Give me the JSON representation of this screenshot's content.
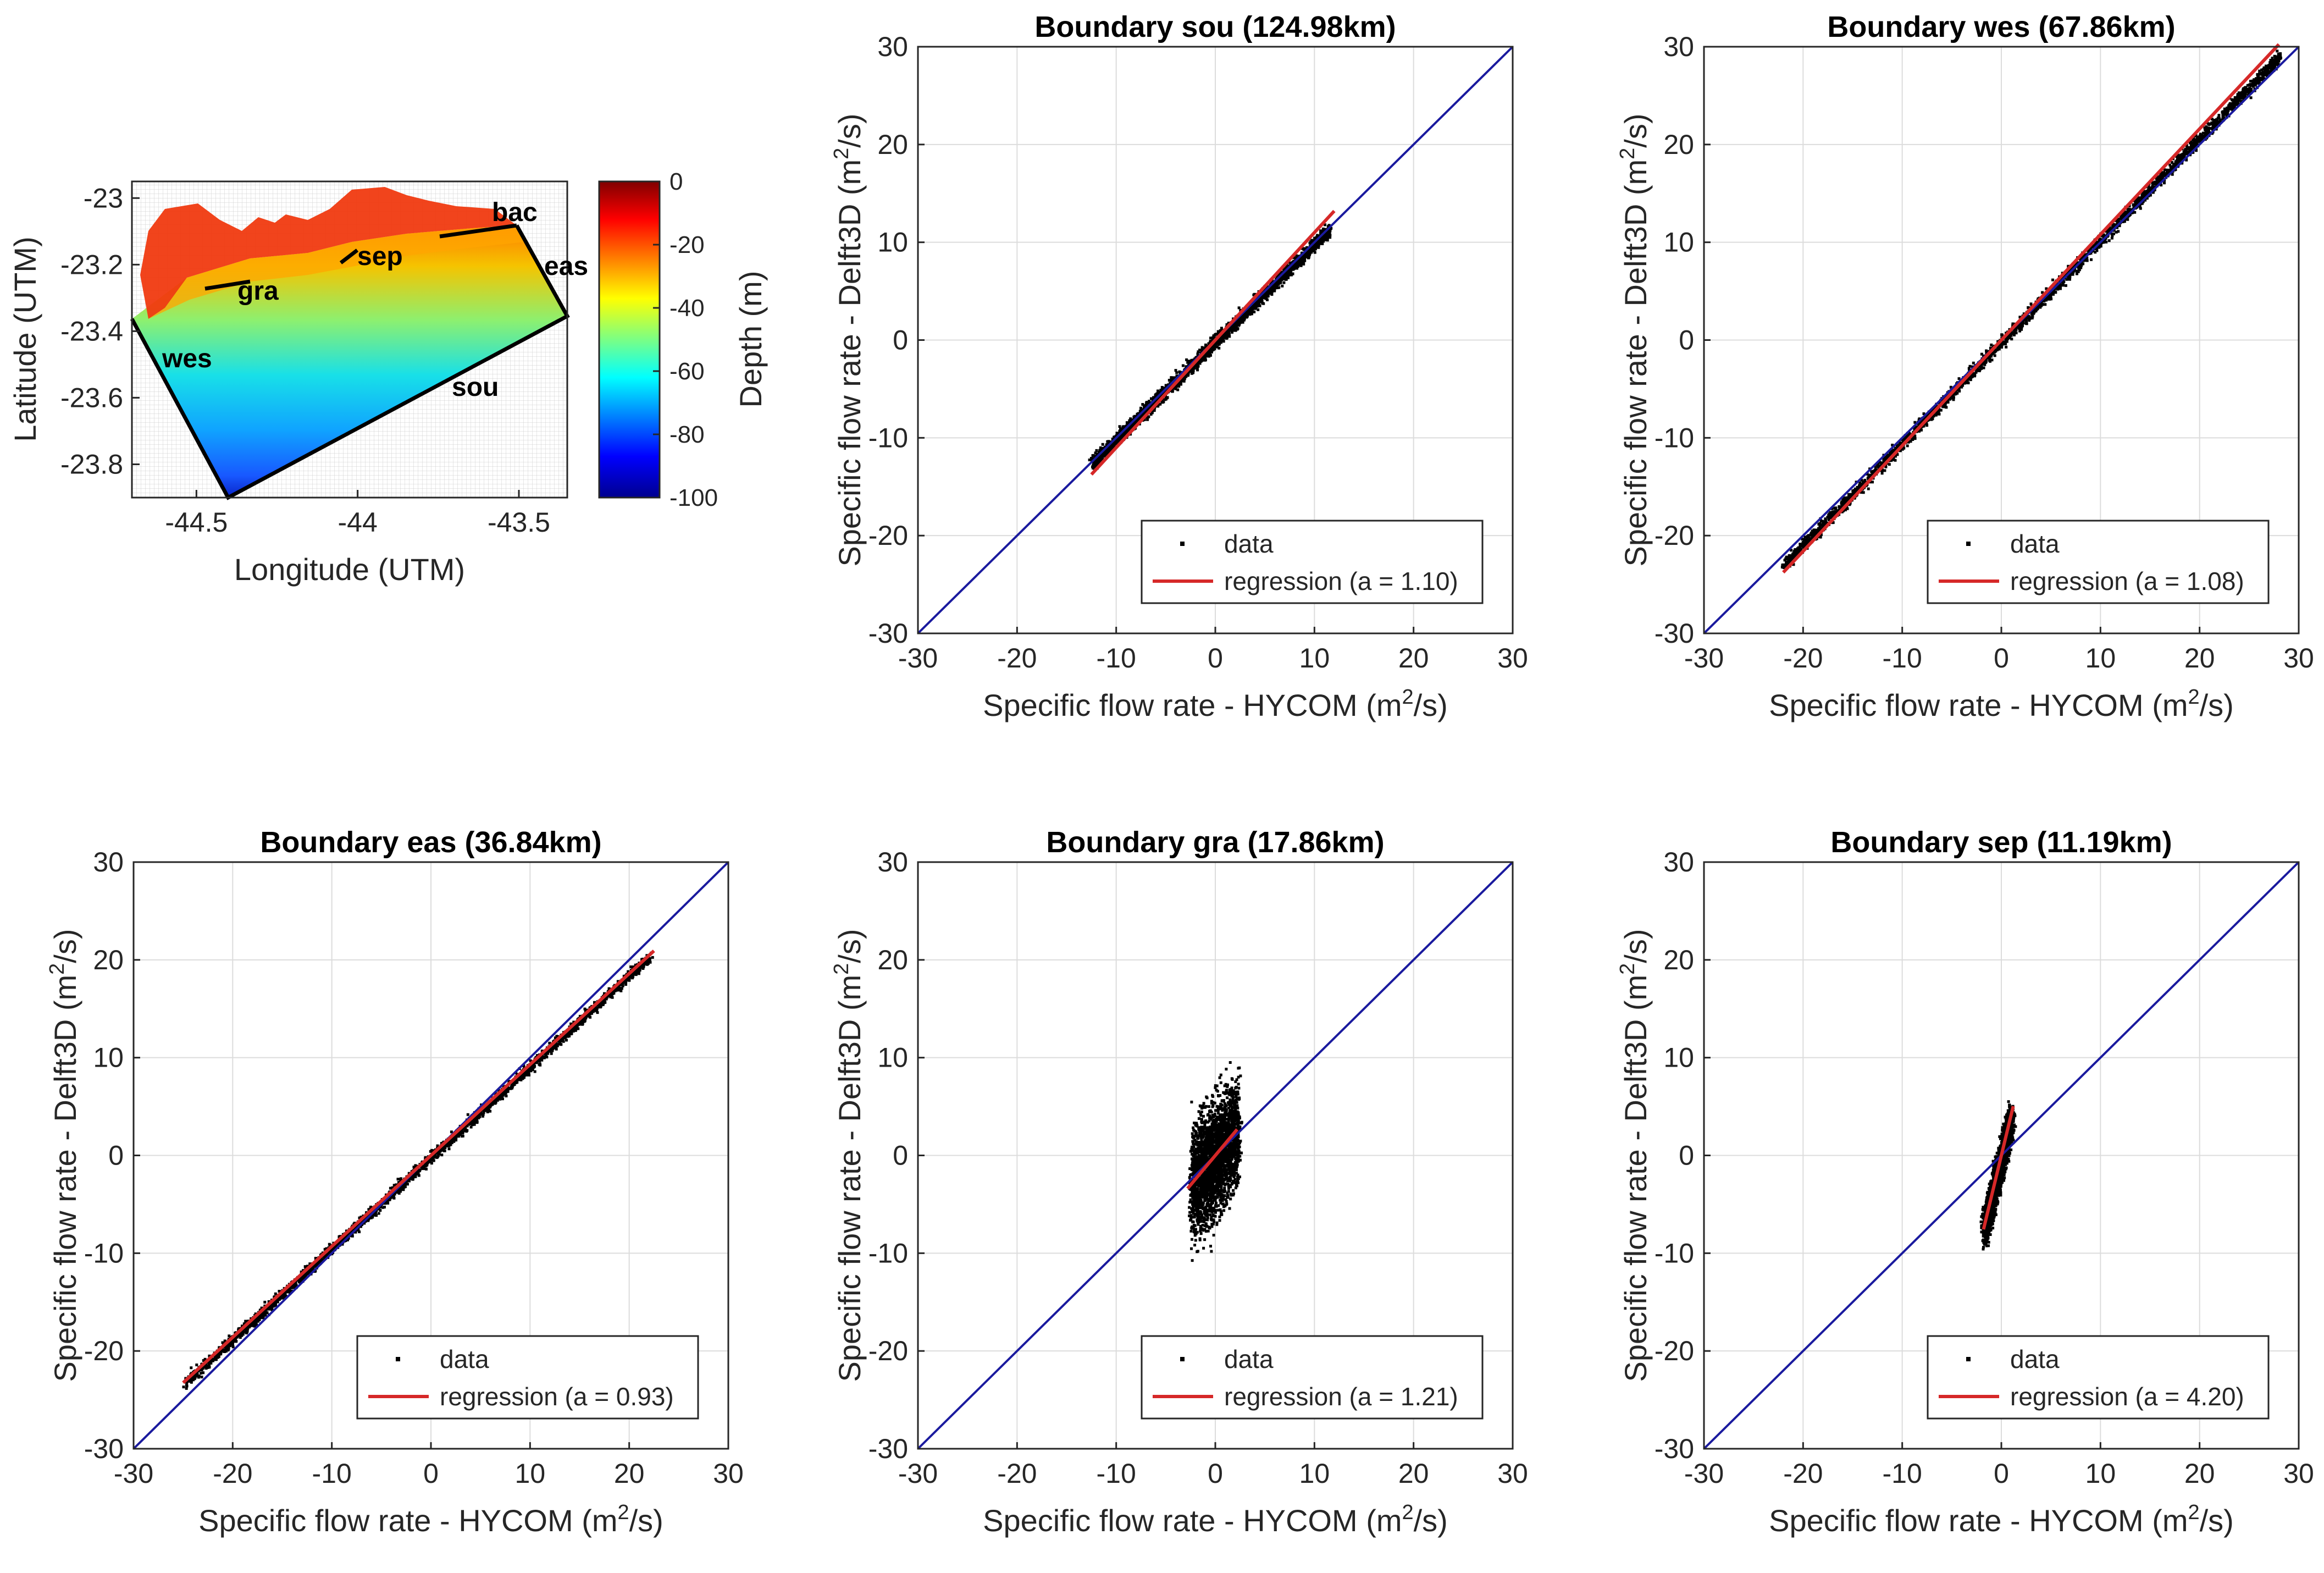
{
  "figure": {
    "map": {
      "xlabel": "Longitude (UTM)",
      "ylabel": "Latitude (UTM)",
      "xticks": [
        -44.5,
        -44,
        -43.5
      ],
      "xtick_labels": [
        "-44.5",
        "-44",
        "-43.5"
      ],
      "yticks": [
        -23,
        -23.2,
        -23.4,
        -23.6,
        -23.8
      ],
      "ytick_labels": [
        "-23",
        "-23.2",
        "-23.4",
        "-23.6",
        "-23.8"
      ],
      "xlim": [
        -44.7,
        -43.35
      ],
      "ylim": [
        -23.9,
        -22.95
      ],
      "boundary_labels": [
        "bac",
        "sep",
        "eas",
        "gra",
        "wes",
        "sou"
      ],
      "colorbar": {
        "label": "Depth (m)",
        "ticks": [
          0,
          -20,
          -40,
          -60,
          -80,
          -100
        ],
        "tick_labels": [
          "0",
          "-20",
          "-40",
          "-60",
          "-80",
          "-100"
        ],
        "range": [
          -100,
          0
        ]
      }
    },
    "legend": {
      "data_label": "data",
      "regression_prefix": "regression (a = ",
      "regression_suffix": ")"
    },
    "colors": {
      "data": "#000000",
      "regression": "#d62828",
      "identity": "#1a1a9e",
      "grid": "#dcdcdc"
    }
  },
  "chart_data": [
    {
      "type": "scatter",
      "title": "Boundary sou (124.98km)",
      "xlabel_prefix": "Specific flow rate - HYCOM (m",
      "xlabel_sup": "2",
      "xlabel_suffix": "/s)",
      "ylabel_prefix": "Specific flow rate - Delft3D (m",
      "ylabel_sup": "2",
      "ylabel_suffix": "/s)",
      "xlim": [
        -30,
        30
      ],
      "ylim": [
        -30,
        30
      ],
      "ticks": [
        -30,
        -20,
        -10,
        0,
        10,
        20,
        30
      ],
      "tick_labels": [
        "-30",
        "-20",
        "-10",
        "0",
        "10",
        "20",
        "30"
      ],
      "data_cloud": {
        "x_range": [
          -12.5,
          11.5
        ],
        "slope": 1.0,
        "spread": 0.9
      },
      "regression": {
        "a": "1.10",
        "slope": 1.1,
        "x_range": [
          -12.5,
          12
        ]
      },
      "identity_line": true,
      "grid": true,
      "legend": "bottom-right"
    },
    {
      "type": "scatter",
      "title": "Boundary wes (67.86km)",
      "xlabel_prefix": "Specific flow rate - HYCOM (m",
      "xlabel_sup": "2",
      "xlabel_suffix": "/s)",
      "ylabel_prefix": "Specific flow rate - Delft3D (m",
      "ylabel_sup": "2",
      "ylabel_suffix": "/s)",
      "xlim": [
        -30,
        30
      ],
      "ylim": [
        -30,
        30
      ],
      "ticks": [
        -30,
        -20,
        -10,
        0,
        10,
        20,
        30
      ],
      "tick_labels": [
        "-30",
        "-20",
        "-10",
        "0",
        "10",
        "20",
        "30"
      ],
      "data_cloud": {
        "x_range": [
          -22,
          28
        ],
        "slope": 1.04,
        "spread": 0.8
      },
      "regression": {
        "a": "1.08",
        "slope": 1.08,
        "x_range": [
          -22,
          28
        ]
      },
      "identity_line": true,
      "grid": true,
      "legend": "bottom-right"
    },
    {
      "type": "scatter",
      "title": "Boundary eas (36.84km)",
      "xlabel_prefix": "Specific flow rate - HYCOM (m",
      "xlabel_sup": "2",
      "xlabel_suffix": "/s)",
      "ylabel_prefix": "Specific flow rate - Delft3D (m",
      "ylabel_sup": "2",
      "ylabel_suffix": "/s)",
      "xlim": [
        -30,
        30
      ],
      "ylim": [
        -30,
        30
      ],
      "ticks": [
        -30,
        -20,
        -10,
        0,
        10,
        20,
        30
      ],
      "tick_labels": [
        "-30",
        "-20",
        "-10",
        "0",
        "10",
        "20",
        "30"
      ],
      "data_cloud": {
        "x_range": [
          -25,
          22
        ],
        "slope": 0.93,
        "spread": 0.7
      },
      "regression": {
        "a": "0.93",
        "slope": 0.93,
        "x_range": [
          -25,
          22.5
        ]
      },
      "identity_line": true,
      "grid": true,
      "legend": "bottom-right"
    },
    {
      "type": "scatter",
      "title": "Boundary gra (17.86km)",
      "xlabel_prefix": "Specific flow rate - HYCOM (m",
      "xlabel_sup": "2",
      "xlabel_suffix": "/s)",
      "ylabel_prefix": "Specific flow rate - Delft3D (m",
      "ylabel_sup": "2",
      "ylabel_suffix": "/s)",
      "xlim": [
        -30,
        30
      ],
      "ylim": [
        -30,
        30
      ],
      "ticks": [
        -30,
        -20,
        -10,
        0,
        10,
        20,
        30
      ],
      "tick_labels": [
        "-30",
        "-20",
        "-10",
        "0",
        "10",
        "20",
        "30"
      ],
      "data_cloud": {
        "x_range": [
          -2.5,
          2.2
        ],
        "slope": 1.21,
        "spread": 8.0
      },
      "regression": {
        "a": "1.21",
        "slope": 1.21,
        "x_range": [
          -2.8,
          2.2
        ]
      },
      "identity_line": true,
      "grid": true,
      "legend": "bottom-right"
    },
    {
      "type": "scatter",
      "title": "Boundary sep (11.19km)",
      "xlabel_prefix": "Specific flow rate - HYCOM (m",
      "xlabel_sup": "2",
      "xlabel_suffix": "/s)",
      "ylabel_prefix": "Specific flow rate - Delft3D (m",
      "ylabel_sup": "2",
      "ylabel_suffix": "/s)",
      "xlim": [
        -30,
        30
      ],
      "ylim": [
        -30,
        30
      ],
      "ticks": [
        -30,
        -20,
        -10,
        0,
        10,
        20,
        30
      ],
      "tick_labels": [
        "-30",
        "-20",
        "-10",
        "0",
        "10",
        "20",
        "30"
      ],
      "data_cloud": {
        "x_range": [
          -1.8,
          0.9
        ],
        "slope": 4.2,
        "spread": 2.5
      },
      "regression": {
        "a": "4.20",
        "slope": 4.2,
        "x_range": [
          -1.8,
          1.2
        ]
      },
      "identity_line": true,
      "grid": true,
      "legend": "bottom-right"
    }
  ]
}
